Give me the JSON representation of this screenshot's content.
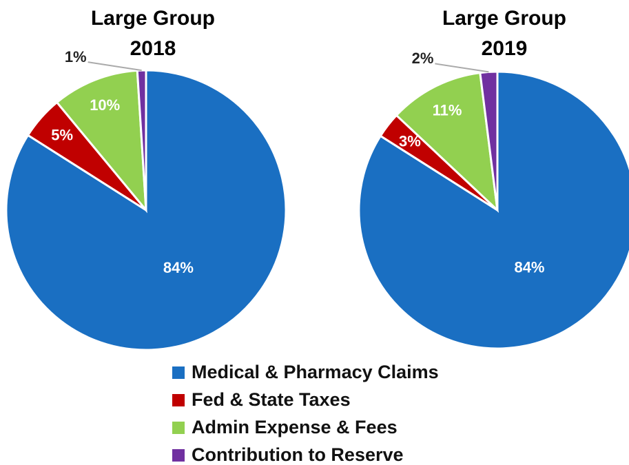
{
  "chart_data": [
    {
      "type": "pie",
      "title": "Large Group",
      "subtitle": "2018",
      "categories": [
        "Medical & Pharmacy Claims",
        "Fed & State Taxes",
        "Admin Expense & Fees",
        "Contribution to Reserve"
      ],
      "values": [
        84,
        5,
        10,
        1
      ],
      "value_labels": [
        "84%",
        "5%",
        "10%",
        "1%"
      ],
      "colors": [
        "#1a6fc2",
        "#c00000",
        "#92d050",
        "#7030a0"
      ]
    },
    {
      "type": "pie",
      "title": "Large Group",
      "subtitle": "2019",
      "categories": [
        "Medical & Pharmacy Claims",
        "Fed & State Taxes",
        "Admin Expense & Fees",
        "Contribution to Reserve"
      ],
      "values": [
        84,
        3,
        11,
        2
      ],
      "value_labels": [
        "84%",
        "3%",
        "11%",
        "2%"
      ],
      "colors": [
        "#1a6fc2",
        "#c00000",
        "#92d050",
        "#7030a0"
      ]
    }
  ]
}
